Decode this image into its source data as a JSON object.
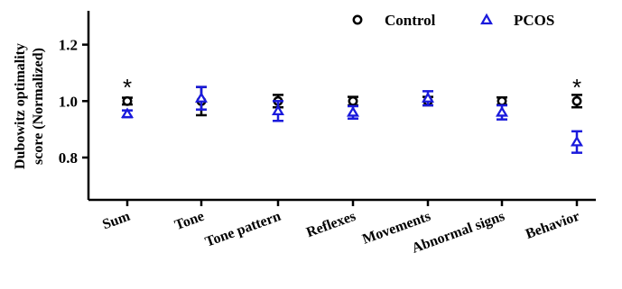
{
  "chart_data": {
    "type": "scatter",
    "ylabel_line1": "Dubowitz optimality",
    "ylabel_line2": "score (Normalized)",
    "xlabel": "",
    "ylim": [
      0.65,
      1.32
    ],
    "yticks": [
      0.8,
      1.0,
      1.2
    ],
    "ytick_labels": [
      "0.8",
      "1.0",
      "1.2"
    ],
    "categories": [
      "Sum",
      "Tone",
      "Tone pattern",
      "Reflexes",
      "Movements",
      "Abnormal signs",
      "Behavior"
    ],
    "series": [
      {
        "name": "Control",
        "marker": "circle",
        "color": "#000000",
        "values": [
          1.0,
          1.0,
          1.0,
          1.0,
          1.0,
          1.0,
          1.0
        ],
        "err": [
          0.012,
          0.05,
          0.022,
          0.015,
          0.015,
          0.013,
          0.022
        ]
      },
      {
        "name": "PCOS",
        "marker": "triangle",
        "color": "#1a1adc",
        "values": [
          0.955,
          1.01,
          0.965,
          0.96,
          1.01,
          0.96,
          0.855
        ],
        "err": [
          0.012,
          0.04,
          0.035,
          0.022,
          0.025,
          0.025,
          0.038
        ]
      }
    ],
    "annotations": [
      {
        "category": "Sum",
        "text": "*"
      },
      {
        "category": "Behavior",
        "text": "*"
      }
    ],
    "legend_position": "top-right"
  }
}
